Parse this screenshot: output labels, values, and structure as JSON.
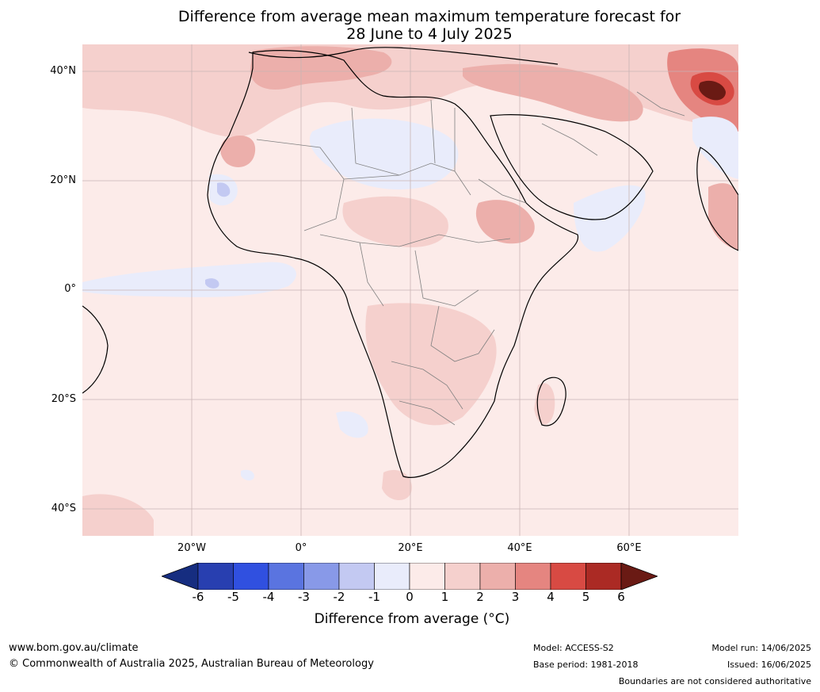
{
  "title": {
    "line1": "Difference from average mean maximum temperature forecast for",
    "line2": "28 June to 4 July 2025"
  },
  "map": {
    "region": "Africa",
    "lat_labels": [
      "40°N",
      "20°N",
      "0°",
      "20°S",
      "40°S"
    ],
    "lon_labels": [
      "20°W",
      "0°",
      "20°E",
      "40°E",
      "60°E"
    ],
    "background_color": "#fcebe9",
    "land_outline_color": "#000000",
    "border_color": "#808080",
    "gridline_color": "#c8b4b4"
  },
  "colorbar": {
    "ticks": [
      "-6",
      "-5",
      "-4",
      "-3",
      "-2",
      "-1",
      "0",
      "1",
      "2",
      "3",
      "4",
      "5",
      "6"
    ],
    "colors": [
      "#162d80",
      "#283fb0",
      "#3050e0",
      "#5a74e0",
      "#8899e8",
      "#c3c9f2",
      "#e9ecfb",
      "#fcebe9",
      "#f5d0cd",
      "#ecafab",
      "#e58580",
      "#d84a43",
      "#ab2a24",
      "#6a1a14"
    ],
    "label": "Difference from average (°C)"
  },
  "footer": {
    "website": "www.bom.gov.au/climate",
    "copyright": "© Commonwealth of Australia 2025, Australian Bureau of Meteorology",
    "model": "Model: ACCESS-S2",
    "base_period": "Base period: 1981-2018",
    "model_run": "Model run: 14/06/2025",
    "issued": "Issued: 16/06/2025",
    "disclaimer": "Boundaries are not considered authoritative"
  }
}
